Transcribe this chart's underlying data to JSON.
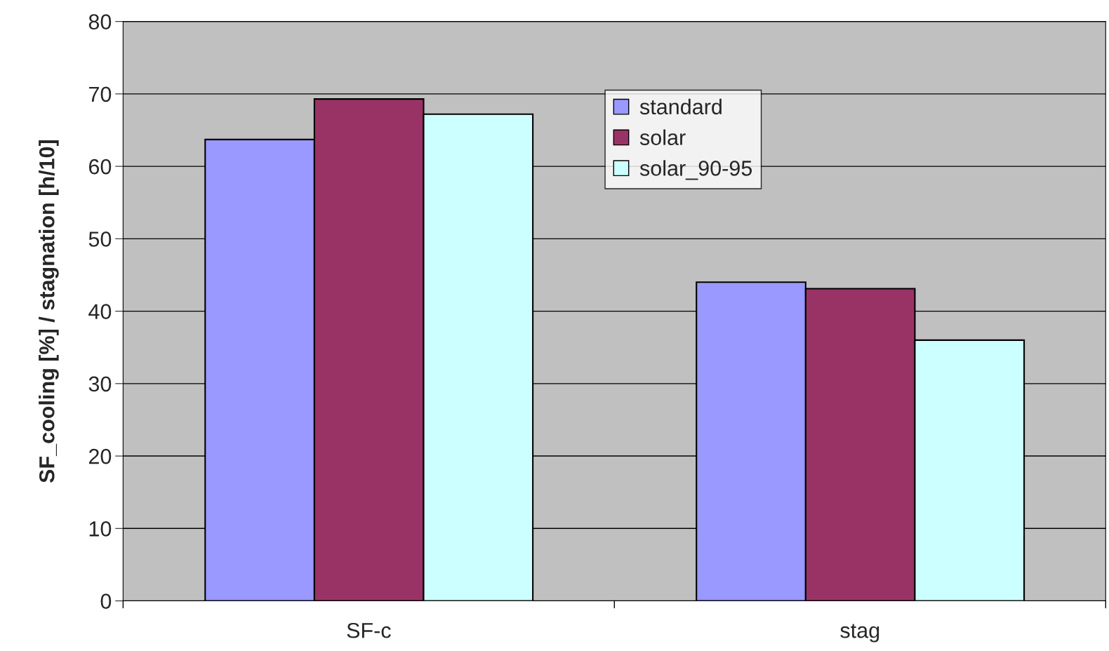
{
  "chart_data": {
    "type": "bar",
    "ylabel": "SF_cooling [%] / stagnation [h/10]",
    "categories": [
      "SF-c",
      "stag"
    ],
    "series": [
      {
        "name": "standard",
        "color": "#9999ff",
        "values": [
          63.7,
          44.0
        ]
      },
      {
        "name": "solar",
        "color": "#993366",
        "values": [
          69.3,
          43.1
        ]
      },
      {
        "name": "solar_90-95",
        "color": "#ccffff",
        "values": [
          67.2,
          36.0
        ]
      }
    ],
    "ylim": [
      0,
      80
    ],
    "yticks": [
      0,
      10,
      20,
      30,
      40,
      50,
      60,
      70,
      80
    ],
    "grid": "y",
    "legend": "top"
  }
}
